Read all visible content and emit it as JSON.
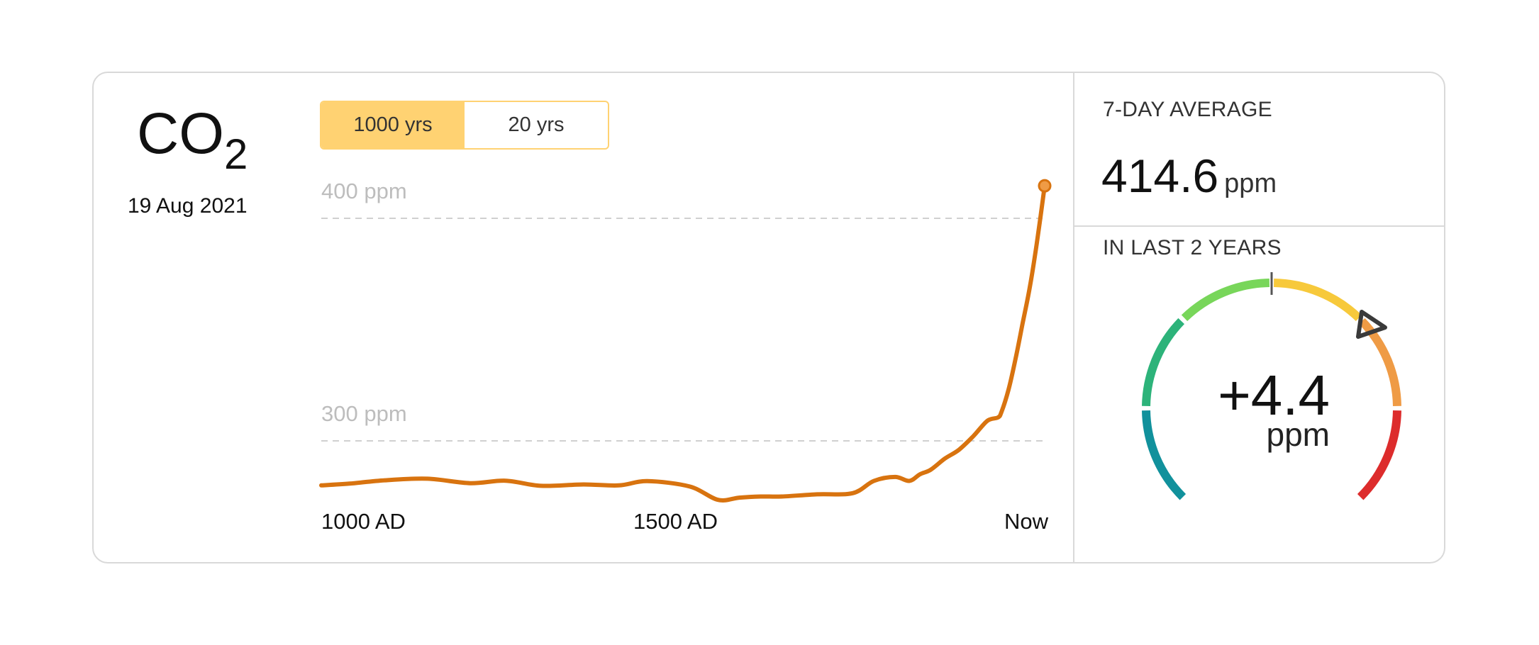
{
  "header": {
    "title_main": "CO",
    "title_sub": "2",
    "date": "19 Aug 2021"
  },
  "toggle": {
    "options": [
      "1000 yrs",
      "20 yrs"
    ],
    "selected": "1000 yrs"
  },
  "summary": {
    "avg_label": "7-DAY AVERAGE",
    "avg_value": "414.6",
    "avg_unit": "ppm",
    "change_label": "IN LAST 2 YEARS",
    "change_value": "+4.4",
    "change_unit": "ppm"
  },
  "colors": {
    "line": "#d8730f",
    "toggle_active": "#ffd272",
    "gauge": [
      "#11919c",
      "#2db37a",
      "#78d65a",
      "#f7c93b",
      "#ef9b45",
      "#dd2c2c"
    ]
  },
  "chart_data": {
    "type": "line",
    "x_unit": "year AD",
    "xlim": [
      1000,
      2021
    ],
    "ylim": [
      265,
      425
    ],
    "gridlines": [
      {
        "value": 300,
        "label": "300 ppm"
      },
      {
        "value": 400,
        "label": "400 ppm"
      }
    ],
    "x_ticks": [
      {
        "value": 1000,
        "label": "1000 AD"
      },
      {
        "value": 1500,
        "label": "1500 AD"
      },
      {
        "value": 2021,
        "label": "Now"
      }
    ],
    "series": [
      {
        "x": [
          1000,
          1040,
          1090,
          1150,
          1210,
          1260,
          1310,
          1370,
          1420,
          1460,
          1520,
          1560,
          1590,
          1620,
          1650,
          1700,
          1750,
          1780,
          1810,
          1830,
          1845,
          1860,
          1880,
          1900,
          1920,
          1940,
          1955,
          1960,
          1970,
          1980,
          1990,
          2000,
          2010,
          2021
        ],
        "y": [
          280.0,
          280.8,
          282.3,
          283.0,
          281.0,
          282.1,
          279.8,
          280.4,
          280.0,
          281.9,
          279.5,
          273.5,
          274.5,
          275.0,
          275.0,
          276.0,
          276.5,
          282.0,
          283.8,
          282.0,
          285.0,
          287.0,
          292.0,
          296.0,
          302.0,
          309.0,
          310.5,
          313.0,
          323.0,
          337.0,
          353.0,
          369.0,
          389.0,
          414.6
        ]
      }
    ]
  }
}
